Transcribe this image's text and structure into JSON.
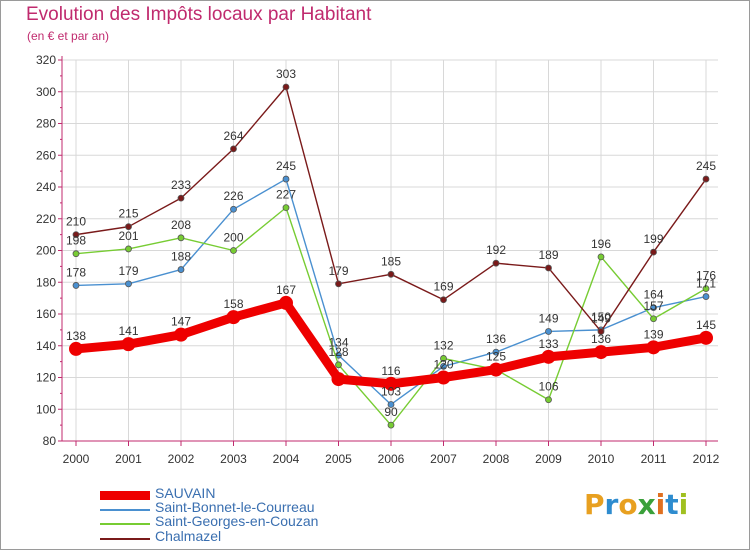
{
  "header": {
    "title": "Evolution des Impôts locaux par Habitant",
    "subtitle": "(en € et par an)"
  },
  "colors": {
    "title": "#c02a6e",
    "axis": "#c02a6e",
    "grid": "#d8d8d8"
  },
  "logo": {
    "text": "Proxiti",
    "colors": [
      "#e8a020",
      "#2e8ccf",
      "#e8a020",
      "#3aa03a",
      "#e07020",
      "#2e8ccf",
      "#a0c020"
    ]
  },
  "chart_data": {
    "type": "line",
    "title": "Evolution des Impôts locaux par Habitant",
    "subtitle": "(en € et par an)",
    "xlabel": "",
    "ylabel": "",
    "ylim": [
      80,
      320
    ],
    "yticks": [
      80,
      100,
      120,
      140,
      160,
      180,
      200,
      220,
      240,
      260,
      280,
      300,
      320
    ],
    "grid": true,
    "legend_position": "bottom-left",
    "x": [
      "2000",
      "2001",
      "2002",
      "2003",
      "2004",
      "2005",
      "2006",
      "2007",
      "2008",
      "2009",
      "2010",
      "2011",
      "2012"
    ],
    "series": [
      {
        "name": "SAUVAIN",
        "color": "#ee0000",
        "width": "thick",
        "values": [
          138,
          141,
          147,
          158,
          167,
          119,
          116,
          120,
          125,
          133,
          136,
          139,
          145
        ],
        "labels": [
          "138",
          "141",
          "147",
          "158",
          "167",
          "",
          "116",
          "",
          "",
          "133",
          "136",
          "139",
          "145"
        ]
      },
      {
        "name": "Saint-Bonnet-le-Courreau",
        "color": "#4a90d0",
        "width": "thin",
        "values": [
          178,
          179,
          188,
          226,
          245,
          134,
          103,
          127,
          136,
          149,
          150,
          164,
          171
        ],
        "labels": [
          "178",
          "179",
          "188",
          "226",
          "245",
          "134",
          "103",
          "",
          "136",
          "149",
          "",
          "",
          ""
        ]
      },
      {
        "name": "Saint-Georges-en-Couzan",
        "color": "#77cc33",
        "width": "thin",
        "values": [
          198,
          201,
          208,
          200,
          227,
          128,
          90,
          132,
          125,
          106,
          196,
          157,
          176
        ],
        "labels": [
          "198",
          "201",
          "208",
          "200",
          "227",
          "",
          "90",
          "132",
          "",
          "106",
          "196",
          "",
          "176"
        ]
      },
      {
        "name": "Chalmazel",
        "color": "#7a1a1a",
        "width": "thin",
        "values": [
          210,
          215,
          233,
          264,
          303,
          179,
          185,
          169,
          192,
          189,
          149,
          199,
          245
        ],
        "labels": [
          "210",
          "215",
          "233",
          "264",
          "303",
          "179",
          "185",
          "169",
          "192",
          "189",
          "",
          "199",
          "245"
        ]
      }
    ],
    "overlap_labels": [
      {
        "text": "128",
        "index": 5,
        "value": 128
      },
      {
        "text": "120",
        "index": 7,
        "value": 120
      },
      {
        "text": "125",
        "index": 8,
        "value": 125
      },
      {
        "text": "150",
        "index": 10,
        "value": 150
      },
      {
        "text": "149",
        "index": 10,
        "value": 149
      },
      {
        "text": "164",
        "index": 11,
        "value": 164
      },
      {
        "text": "157",
        "index": 11,
        "value": 157
      },
      {
        "text": "171",
        "index": 12,
        "value": 171
      }
    ]
  }
}
